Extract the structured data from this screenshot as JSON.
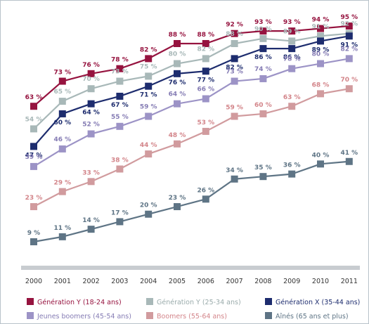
{
  "chart_data": {
    "type": "line",
    "title": "",
    "xlabel": "",
    "ylabel": "",
    "x": [
      "2000",
      "2001",
      "2002",
      "2003",
      "2004",
      "2005",
      "2006",
      "2007",
      "2008",
      "2009",
      "2010",
      "2011"
    ],
    "ylim": [
      0,
      100
    ],
    "grid": false,
    "legend_position": "bottom",
    "series": [
      {
        "name": "Génération Y (18-24 ans)",
        "color": "#96133f",
        "label_color": "#96133f",
        "values": [
          63,
          73,
          76,
          78,
          82,
          88,
          88,
          92,
          93,
          93,
          94,
          95
        ],
        "labels": [
          "63 %",
          "73 %",
          "76 %",
          "78 %",
          "82 %",
          "88 %",
          "88 %",
          "92 %",
          "93 %",
          "93 %",
          "94 %",
          "95 %"
        ]
      },
      {
        "name": "Génération Y (25-34 ans)",
        "color": "#a8b8b8",
        "label_color": "#a8b8b8",
        "values": [
          54,
          65,
          70,
          73,
          75,
          80,
          82,
          88,
          90,
          89,
          91,
          92
        ],
        "labels": [
          "54 %",
          "65 %",
          "70 %",
          "73 %",
          "75 %",
          "80 %",
          "82 %",
          "88 %",
          "90 %",
          "89 %",
          "91 %",
          "92 %"
        ]
      },
      {
        "name": "Génération X (35-44 ans)",
        "color": "#1d2c6e",
        "label_color": "#1d2c6e",
        "values": [
          47,
          60,
          64,
          67,
          71,
          76,
          77,
          82,
          86,
          86,
          89,
          91
        ],
        "labels": [
          "47 %",
          "60 %",
          "64 %",
          "67 %",
          "71 %",
          "76 %",
          "77 %",
          "82 %",
          "86 %",
          "86 %",
          "89 %",
          "91 %"
        ]
      },
      {
        "name": "Jeunes boomers (45-54 ans)",
        "color": "#9c93c6",
        "label_color": "#857cb4",
        "values": [
          39,
          46,
          52,
          55,
          59,
          64,
          66,
          73,
          74,
          78,
          80,
          82
        ],
        "labels": [
          "39 %",
          "46 %",
          "52 %",
          "55 %",
          "59 %",
          "64 %",
          "66 %",
          "73 %",
          "74 %",
          "78 %",
          "80 %",
          "82 %"
        ]
      },
      {
        "name": "Boomers (55-64 ans)",
        "color": "#d19b9e",
        "label_color": "#d3858a",
        "values": [
          23,
          29,
          33,
          38,
          44,
          48,
          53,
          59,
          60,
          63,
          68,
          70
        ],
        "labels": [
          "23 %",
          "29 %",
          "33 %",
          "38 %",
          "44 %",
          "48 %",
          "53 %",
          "59 %",
          "60 %",
          "63 %",
          "68 %",
          "70 %"
        ]
      },
      {
        "name": "Aînés (65 ans et plus)",
        "color": "#5e7485",
        "label_color": "#5e7485",
        "values": [
          9,
          11,
          14,
          17,
          20,
          23,
          26,
          34,
          35,
          36,
          40,
          41
        ],
        "labels": [
          "9 %",
          "11 %",
          "14 %",
          "17 %",
          "20 %",
          "23 %",
          "26 %",
          "34 %",
          "35 %",
          "36 %",
          "40 %",
          "41 %"
        ]
      }
    ]
  },
  "legend": [
    {
      "label": "Génération Y (18-24 ans)",
      "color": "#96133f",
      "text_color": "#96133f"
    },
    {
      "label": "Génération Y (25-34 ans)",
      "color": "#a8b8b8",
      "text_color": "#9aabab"
    },
    {
      "label": "Génération X (35-44 ans)",
      "color": "#1d2c6e",
      "text_color": "#1d2c6e"
    },
    {
      "label": "Jeunes boomers (45-54 ans)",
      "color": "#9c93c6",
      "text_color": "#857cb4"
    },
    {
      "label": "Boomers (55-64 ans)",
      "color": "#d19b9e",
      "text_color": "#d3858a"
    },
    {
      "label": "Aînés (65 ans et plus)",
      "color": "#5e7485",
      "text_color": "#5e7485"
    }
  ],
  "axis_color": "#c8ccd0"
}
